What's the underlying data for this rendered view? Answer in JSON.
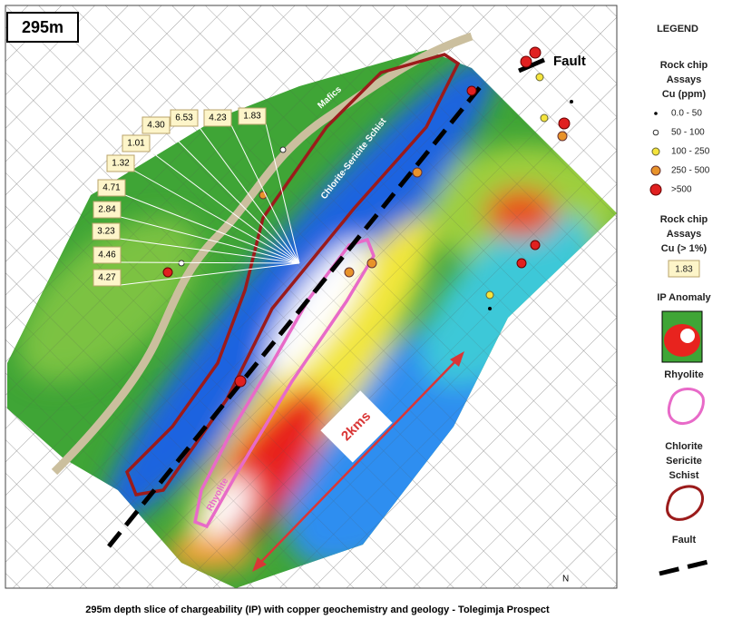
{
  "map": {
    "depth_label": "295m",
    "fault_label": "Fault",
    "mafics_label": "Mafics",
    "schist_label": "Chlorite-Sericite Schist",
    "rhyolite_label": "Rhyolite",
    "scale_label": "2kms",
    "north_label": "N",
    "assay_callouts": [
      "4.30",
      "6.53",
      "4.23",
      "1.83",
      "1.01",
      "1.32",
      "4.71",
      "2.84",
      "3.23",
      "4.46",
      "4.27"
    ]
  },
  "legend": {
    "title": "LEGEND",
    "ppm_heading": [
      "Rock chip",
      "Assays",
      "Cu (ppm)"
    ],
    "ppm_items": [
      "0.0 - 50",
      "50 - 100",
      "100 - 250",
      "250 - 500",
      ">500"
    ],
    "pct_heading": [
      "Rock chip",
      "Assays",
      "Cu (> 1%)"
    ],
    "pct_example": "1.83",
    "ip_label": "IP Anomaly",
    "rhyolite_label": "Rhyolite",
    "schist_label": [
      "Chlorite",
      "Sericite",
      "Schist"
    ],
    "fault_label": "Fault"
  },
  "caption": "295m depth slice of chargeability (IP) with copper geochemistry and geology - Tolegimja Prospect"
}
